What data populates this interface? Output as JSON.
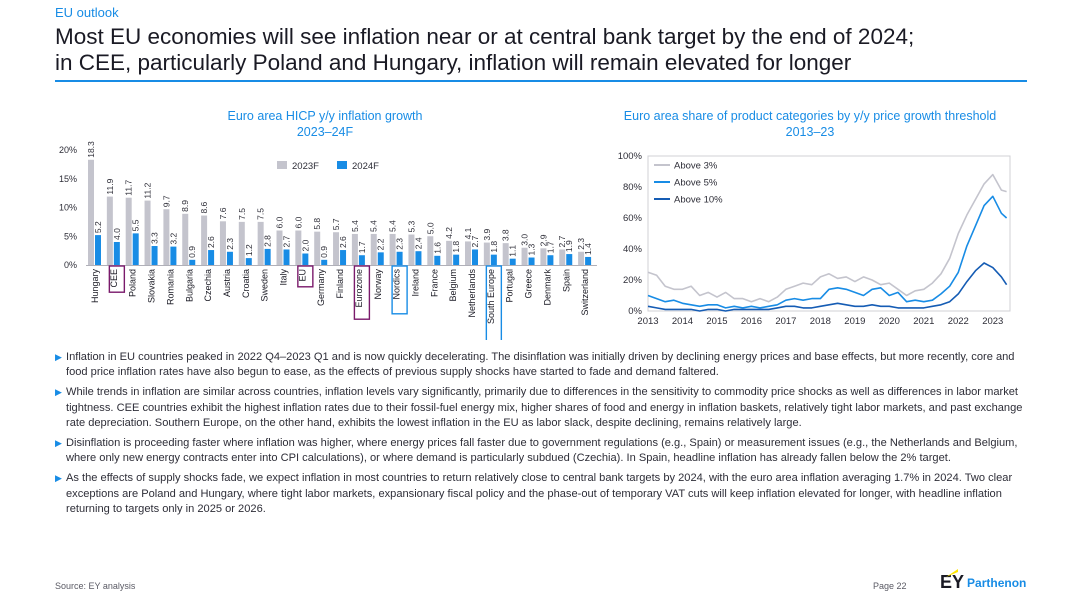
{
  "header": {
    "section_label": "EU outlook",
    "headline_line1": "Most EU economies will see inflation near or at central bank target by the end of 2024;",
    "headline_line2": "in CEE, particularly Poland and Hungary, inflation will remain elevated for longer"
  },
  "colors": {
    "accent": "#188ce5",
    "grey_bar": "#c4c4cd",
    "highlight_cee": "#7a1a6b",
    "highlight_blue": "#188ce5",
    "dark_line": "#155cb4"
  },
  "chart_data": [
    {
      "type": "bar",
      "title_line1": "Euro area HICP y/y inflation growth",
      "title_line2": "2023–24F",
      "ylim": [
        0,
        20
      ],
      "yticks": [
        "0%",
        "5%",
        "10%",
        "15%",
        "20%"
      ],
      "categories": [
        "Hungary",
        "CEE",
        "Poland",
        "Slovakia",
        "Romania",
        "Bulgaria",
        "Czechia",
        "Austria",
        "Croatia",
        "Sweden",
        "Italy",
        "EU",
        "Germany",
        "Finland",
        "Eurozone",
        "Norway",
        "Nordics",
        "Ireland",
        "France",
        "Belgium",
        "Netherlands",
        "South Europe",
        "Portugal",
        "Greece",
        "Denmark",
        "Spain",
        "Switzerland"
      ],
      "series": [
        {
          "name": "2023F",
          "color": "#c4c4cd",
          "values": [
            18.3,
            11.9,
            11.7,
            11.2,
            9.7,
            8.9,
            8.6,
            7.6,
            7.5,
            7.5,
            6.0,
            6.0,
            5.8,
            5.7,
            5.4,
            5.4,
            5.4,
            5.3,
            5.0,
            4.2,
            4.1,
            3.9,
            3.8,
            3.0,
            2.9,
            2.7,
            2.3
          ]
        },
        {
          "name": "2024F",
          "color": "#188ce5",
          "values": [
            5.2,
            4.0,
            5.5,
            3.3,
            3.2,
            0.9,
            2.6,
            2.3,
            1.2,
            2.8,
            2.7,
            2.0,
            0.9,
            2.6,
            1.7,
            2.2,
            2.3,
            2.4,
            1.6,
            1.8,
            2.7,
            1.8,
            1.1,
            1.3,
            1.7,
            1.9,
            1.4
          ]
        }
      ],
      "highlights": [
        {
          "category": "CEE",
          "color": "#7a1a6b"
        },
        {
          "category": "EU",
          "color": "#7a1a6b"
        },
        {
          "category": "Eurozone",
          "color": "#7a1a6b"
        },
        {
          "category": "Nordics",
          "color": "#188ce5"
        },
        {
          "category": "South Europe",
          "color": "#188ce5"
        }
      ]
    },
    {
      "type": "line",
      "title_line1": "Euro area share of product categories by y/y price growth threshold",
      "title_line2": "2013–23",
      "ylim": [
        0,
        100
      ],
      "yticks": [
        "0%",
        "20%",
        "40%",
        "60%",
        "80%",
        "100%"
      ],
      "xlim": [
        2013,
        2023.5
      ],
      "xticks": [
        "2013",
        "2014",
        "2015",
        "2016",
        "2017",
        "2018",
        "2019",
        "2020",
        "2021",
        "2022",
        "2023"
      ],
      "series": [
        {
          "name": "Above 3%",
          "color": "#c4c4cd",
          "x": [
            2013,
            2013.25,
            2013.5,
            2013.75,
            2014,
            2014.25,
            2014.5,
            2014.75,
            2015,
            2015.25,
            2015.5,
            2015.75,
            2016,
            2016.25,
            2016.5,
            2016.75,
            2017,
            2017.25,
            2017.5,
            2017.75,
            2018,
            2018.25,
            2018.5,
            2018.75,
            2019,
            2019.25,
            2019.5,
            2019.75,
            2020,
            2020.25,
            2020.5,
            2020.75,
            2021,
            2021.25,
            2021.5,
            2021.75,
            2022,
            2022.25,
            2022.5,
            2022.75,
            2023,
            2023.25,
            2023.4
          ],
          "y": [
            25,
            23,
            16,
            14,
            14,
            16,
            10,
            12,
            9,
            12,
            8,
            8,
            6,
            8,
            6,
            9,
            14,
            16,
            18,
            17,
            22,
            24,
            21,
            22,
            19,
            22,
            20,
            17,
            18,
            14,
            10,
            13,
            14,
            18,
            24,
            34,
            50,
            62,
            72,
            82,
            88,
            78,
            77
          ]
        },
        {
          "name": "Above 5%",
          "color": "#188ce5",
          "x": [
            2013,
            2013.25,
            2013.5,
            2013.75,
            2014,
            2014.25,
            2014.5,
            2014.75,
            2015,
            2015.25,
            2015.5,
            2015.75,
            2016,
            2016.25,
            2016.5,
            2016.75,
            2017,
            2017.25,
            2017.5,
            2017.75,
            2018,
            2018.25,
            2018.5,
            2018.75,
            2019,
            2019.25,
            2019.5,
            2019.75,
            2020,
            2020.25,
            2020.5,
            2020.75,
            2021,
            2021.25,
            2021.5,
            2021.75,
            2022,
            2022.25,
            2022.5,
            2022.75,
            2023,
            2023.25,
            2023.4
          ],
          "y": [
            10,
            8,
            6,
            7,
            5,
            4,
            3,
            4,
            4,
            2,
            3,
            2,
            3,
            2,
            3,
            4,
            7,
            8,
            7,
            8,
            8,
            14,
            15,
            14,
            12,
            10,
            14,
            15,
            10,
            12,
            6,
            7,
            6,
            7,
            11,
            16,
            25,
            42,
            55,
            68,
            74,
            63,
            60
          ]
        },
        {
          "name": "Above 10%",
          "color": "#155cb4",
          "x": [
            2013,
            2013.25,
            2013.5,
            2013.75,
            2014,
            2014.25,
            2014.5,
            2014.75,
            2015,
            2015.25,
            2015.5,
            2015.75,
            2016,
            2016.25,
            2016.5,
            2016.75,
            2017,
            2017.25,
            2017.5,
            2017.75,
            2018,
            2018.25,
            2018.5,
            2018.75,
            2019,
            2019.25,
            2019.5,
            2019.75,
            2020,
            2020.25,
            2020.5,
            2020.75,
            2021,
            2021.25,
            2021.5,
            2021.75,
            2022,
            2022.25,
            2022.5,
            2022.75,
            2023,
            2023.25,
            2023.4
          ],
          "y": [
            3,
            2,
            1,
            1,
            1,
            1,
            0,
            1,
            1,
            0,
            1,
            1,
            1,
            1,
            1,
            2,
            3,
            3,
            2,
            2,
            3,
            4,
            5,
            4,
            3,
            3,
            4,
            3,
            3,
            2,
            2,
            2,
            2,
            3,
            4,
            6,
            11,
            19,
            26,
            31,
            28,
            22,
            17
          ]
        }
      ]
    }
  ],
  "bullets": [
    "Inflation in EU countries peaked in 2022 Q4–2023 Q1 and is now quickly decelerating. The disinflation was initially driven by declining energy prices and base effects, but more recently, core and food price inflation rates have also begun to ease, as the effects of previous supply shocks have started to fade and demand faltered.",
    "While trends in inflation are similar across countries, inflation levels vary significantly, primarily due to differences in the sensitivity to commodity price shocks as well as differences in labor market tightness. CEE countries exhibit the highest inflation rates due to their fossil-fuel energy mix, higher shares of food and energy in inflation baskets, relatively tight labor markets, and past exchange rate depreciation. Southern Europe, on the other hand, exhibits the lowest inflation in the EU as labor slack, despite declining, remains relatively large.",
    "Disinflation is proceeding faster where inflation was higher, where energy prices fall faster due to government regulations (e.g., Spain) or measurement issues (e.g., the Netherlands and Belgium, where only new energy contracts enter into CPI calculations), or where demand is particularly subdued (Czechia). In Spain, headline inflation has already fallen below the 2% target.",
    "As the effects of supply shocks fade, we expect inflation in most countries to return relatively close to central bank targets by 2024, with the euro area inflation averaging 1.7% in 2024. Two clear exceptions are Poland and Hungary, where tight labor markets, expansionary fiscal policy and the phase-out of temporary VAT cuts will keep inflation elevated for longer, with headline inflation returning to targets only in 2025 or 2026."
  ],
  "footer": {
    "source": "Source: EY analysis",
    "page": "Page 22",
    "logo_ey": "EY",
    "logo_parthenon": "Parthenon"
  }
}
